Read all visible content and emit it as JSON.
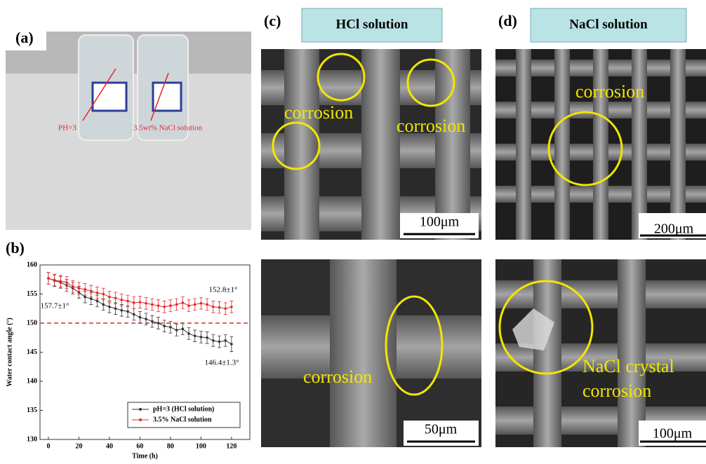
{
  "panels": {
    "a": {
      "label": "(a)",
      "annotations": [
        "PH=3",
        "3.5wt% NaCl solution"
      ]
    },
    "b": {
      "label": "(b)"
    },
    "c": {
      "label": "(c)",
      "header": "HCl solution",
      "top_annotations": [
        "corrosion",
        "corrosion"
      ],
      "top_scale": "100μm",
      "bottom_annotation": "corrosion",
      "bottom_scale": "50μm"
    },
    "d": {
      "label": "(d)",
      "header": "NaCl solution",
      "top_annotation": "corrosion",
      "top_scale": "200μm",
      "bottom_annotation": [
        "NaCl crystal",
        "corrosion"
      ],
      "bottom_scale": "100μm"
    }
  },
  "chart_data": {
    "type": "line",
    "x_label": "Time (h)",
    "y_label": "Water contact angle (°)",
    "x": [
      0,
      4,
      8,
      12,
      16,
      20,
      24,
      28,
      32,
      36,
      40,
      44,
      48,
      52,
      56,
      60,
      64,
      68,
      72,
      76,
      80,
      84,
      88,
      92,
      96,
      100,
      104,
      108,
      112,
      116,
      120
    ],
    "series": [
      {
        "name": "pH=3 (HCl solution)",
        "color": "#333333",
        "values": [
          157.7,
          157.3,
          157,
          156.5,
          156,
          155.3,
          154.5,
          154.2,
          153.8,
          153.2,
          152.8,
          152.5,
          152.2,
          152,
          151.5,
          151,
          150.7,
          150.3,
          150,
          149.5,
          149.3,
          148.8,
          149,
          148.2,
          147.8,
          147.6,
          147.5,
          147,
          146.8,
          147,
          146.4
        ],
        "errors": [
          1,
          1,
          1,
          1,
          1,
          1,
          1,
          1,
          1,
          1,
          1,
          1,
          1,
          1,
          1,
          1,
          1,
          1,
          1,
          1,
          1,
          1,
          1,
          1,
          1,
          1,
          1,
          1,
          1,
          1,
          1.3
        ]
      },
      {
        "name": "3.5% NaCl solution",
        "color": "#e8242a",
        "values": [
          157.7,
          157.4,
          157.2,
          157,
          156.3,
          156,
          155.8,
          155.5,
          155.2,
          155,
          154.5,
          154.3,
          154,
          153.8,
          153.5,
          153.6,
          153.4,
          153.2,
          153,
          152.8,
          153,
          153.2,
          153.5,
          153,
          153.2,
          153.4,
          153.2,
          152.8,
          152.7,
          152.5,
          152.8
        ],
        "errors": [
          1,
          1,
          1,
          1,
          1,
          1,
          1,
          1,
          1,
          1,
          1,
          1,
          1,
          1,
          1,
          1,
          1,
          1,
          1,
          1,
          1,
          1,
          1,
          1,
          1,
          1,
          1,
          1,
          1,
          1,
          1
        ]
      }
    ],
    "xlim": [
      -5.5,
      132
    ],
    "ylim": [
      130,
      160
    ],
    "xticks": [
      0,
      20,
      40,
      60,
      80,
      100,
      120
    ],
    "yticks": [
      130,
      135,
      140,
      145,
      150,
      155,
      160
    ],
    "reference_line": {
      "value": 150,
      "color": "#e8242a"
    },
    "annotations": [
      "157.7±1°",
      "152.8±1°",
      "146.4±1.3°"
    ],
    "legend": "bottom-right"
  }
}
